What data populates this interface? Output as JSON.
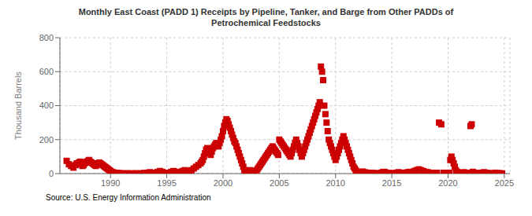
{
  "chart_data": {
    "type": "scatter",
    "title": "Monthly East Coast (PADD 1) Receipts by Pipeline, Tanker, and Barge from Other PADDs of\nPetrochemical Feedstocks",
    "ylabel": "Thousand Barrels",
    "source": "Source: U.S. Energy Information Administration",
    "color": "#cc0000",
    "marker": "square",
    "grid": true,
    "xlim": [
      1985.5,
      2025.5
    ],
    "ylim": [
      0,
      800
    ],
    "xticks": [
      1990,
      1995,
      2000,
      2005,
      2010,
      2015,
      2020,
      2025
    ],
    "yticks": [
      0,
      200,
      400,
      600,
      800
    ],
    "x": [
      1986.1,
      1986.3,
      1986.5,
      1986.7,
      1986.9,
      1987.0,
      1987.2,
      1987.3,
      1987.4,
      1987.5,
      1987.6,
      1987.7,
      1987.8,
      1987.9,
      1988.0,
      1988.1,
      1988.2,
      1988.3,
      1988.4,
      1988.5,
      1988.6,
      1988.7,
      1988.8,
      1988.9,
      1989.0,
      1989.1,
      1989.2,
      1989.3,
      1989.4,
      1989.5,
      1989.6,
      1989.7,
      1989.8,
      1989.9,
      1990.0,
      1990.1,
      1990.2,
      1990.3,
      1990.4,
      1990.5,
      1990.6,
      1990.7,
      1990.8,
      1990.9,
      1991.0,
      1991.2,
      1991.5,
      1991.8,
      1992.0,
      1992.3,
      1992.6,
      1992.9,
      1993.0,
      1993.2,
      1993.5,
      1993.7,
      1993.9,
      1994.0,
      1994.2,
      1994.4,
      1994.6,
      1994.8,
      1995.0,
      1995.2,
      1995.4,
      1995.6,
      1995.8,
      1996.0,
      1996.2,
      1996.4,
      1996.6,
      1996.8,
      1997.0,
      1997.2,
      1997.4,
      1997.6,
      1997.8,
      1998.0,
      1998.1,
      1998.2,
      1998.3,
      1998.4,
      1998.5,
      1998.6,
      1998.7,
      1998.8,
      1998.9,
      1999.0,
      1999.1,
      1999.2,
      1999.3,
      1999.4,
      1999.5,
      1999.6,
      1999.7,
      1999.8,
      1999.9,
      2000.0,
      2000.1,
      2000.2,
      2000.3,
      2000.4,
      2000.5,
      2000.6,
      2000.7,
      2000.8,
      2000.9,
      2001.0,
      2001.1,
      2001.2,
      2001.3,
      2001.4,
      2001.5,
      2001.6,
      2001.7,
      2001.8,
      2001.9,
      2002.0,
      2002.2,
      2002.4,
      2002.6,
      2002.8,
      2003.0,
      2003.1,
      2003.2,
      2003.3,
      2003.4,
      2003.5,
      2003.6,
      2003.7,
      2003.8,
      2003.9,
      2004.0,
      2004.1,
      2004.2,
      2004.3,
      2004.4,
      2004.5,
      2004.6,
      2004.7,
      2004.8,
      2004.9,
      2005.0,
      2005.1,
      2005.2,
      2005.3,
      2005.4,
      2005.5,
      2005.6,
      2005.7,
      2005.8,
      2005.9,
      2006.0,
      2006.1,
      2006.2,
      2006.3,
      2006.4,
      2006.5,
      2006.6,
      2006.7,
      2006.8,
      2006.9,
      2007.0,
      2007.1,
      2007.2,
      2007.3,
      2007.4,
      2007.5,
      2007.6,
      2007.7,
      2007.8,
      2007.9,
      2008.0,
      2008.1,
      2008.2,
      2008.3,
      2008.4,
      2008.5,
      2008.6,
      2008.7,
      2008.8,
      2008.9,
      2009.0,
      2009.1,
      2009.2,
      2009.3,
      2009.4,
      2009.5,
      2009.6,
      2009.7,
      2009.8,
      2009.9,
      2010.0,
      2010.1,
      2010.2,
      2010.3,
      2010.4,
      2010.5,
      2010.6,
      2010.7,
      2010.8,
      2010.9,
      2011.0,
      2011.1,
      2011.2,
      2011.3,
      2011.4,
      2011.5,
      2011.6,
      2011.7,
      2011.8,
      2011.9,
      2012.0,
      2012.2,
      2012.4,
      2012.6,
      2012.8,
      2013.0,
      2013.2,
      2013.4,
      2013.6,
      2013.8,
      2014.0,
      2014.1,
      2014.2,
      2014.3,
      2014.4,
      2014.5,
      2014.6,
      2014.7,
      2014.8,
      2014.9,
      2015.0,
      2015.2,
      2015.4,
      2015.6,
      2015.8,
      2016.0,
      2016.2,
      2016.4,
      2016.6,
      2016.8,
      2017.0,
      2017.2,
      2017.4,
      2017.6,
      2017.8,
      2018.0,
      2018.2,
      2018.4,
      2018.6,
      2018.8,
      2019.0,
      2019.2,
      2019.4,
      2019.6,
      2019.8,
      2020.0,
      2020.1,
      2020.2,
      2020.3,
      2020.4,
      2020.5,
      2020.6,
      2020.7,
      2020.8,
      2020.9,
      2021.0,
      2021.2,
      2021.4,
      2021.6,
      2021.8,
      2022.0,
      2022.1,
      2022.2,
      2022.4,
      2022.6,
      2022.8,
      2023.0,
      2023.2,
      2023.4,
      2023.6,
      2024.0,
      2024.2,
      2024.4,
      2024.6,
      2024.8
    ],
    "values": [
      75,
      55,
      45,
      35,
      50,
      60,
      65,
      70,
      55,
      45,
      50,
      60,
      65,
      70,
      75,
      80,
      70,
      65,
      60,
      55,
      50,
      45,
      55,
      60,
      65,
      60,
      55,
      50,
      45,
      40,
      35,
      30,
      25,
      20,
      15,
      10,
      8,
      5,
      3,
      5,
      3,
      2,
      2,
      1,
      1,
      1,
      2,
      1,
      1,
      2,
      1,
      2,
      3,
      5,
      8,
      5,
      3,
      5,
      10,
      15,
      10,
      5,
      2,
      5,
      10,
      15,
      10,
      5,
      10,
      15,
      20,
      15,
      10,
      20,
      30,
      40,
      50,
      60,
      70,
      80,
      100,
      120,
      140,
      150,
      130,
      120,
      110,
      130,
      150,
      160,
      170,
      180,
      170,
      160,
      180,
      200,
      220,
      250,
      280,
      300,
      320,
      310,
      290,
      270,
      250,
      230,
      210,
      190,
      180,
      160,
      140,
      120,
      100,
      80,
      60,
      40,
      20,
      10,
      15,
      20,
      15,
      10,
      20,
      30,
      40,
      50,
      60,
      70,
      80,
      90,
      100,
      110,
      120,
      130,
      140,
      150,
      160,
      150,
      140,
      130,
      120,
      110,
      200,
      190,
      180,
      170,
      160,
      150,
      140,
      130,
      120,
      110,
      100,
      120,
      140,
      160,
      180,
      200,
      180,
      160,
      140,
      120,
      100,
      120,
      140,
      160,
      180,
      200,
      220,
      240,
      260,
      280,
      300,
      320,
      340,
      360,
      380,
      400,
      420,
      630,
      600,
      550,
      400,
      350,
      300,
      250,
      200,
      180,
      160,
      140,
      120,
      100,
      80,
      100,
      120,
      140,
      160,
      180,
      200,
      220,
      200,
      180,
      160,
      140,
      120,
      100,
      80,
      60,
      40,
      30,
      20,
      10,
      5,
      8,
      12,
      8,
      5,
      3,
      5,
      3,
      2,
      1,
      2,
      5,
      8,
      10,
      8,
      5,
      3,
      2,
      1,
      2,
      1,
      2,
      5,
      8,
      5,
      3,
      5,
      8,
      10,
      8,
      15,
      20,
      25,
      20,
      15,
      10,
      8,
      5,
      3,
      2,
      5,
      300,
      290,
      5,
      3,
      2,
      5,
      80,
      100,
      80,
      60,
      40,
      20,
      10,
      5,
      3,
      5,
      8,
      5,
      3,
      280,
      290,
      10,
      5,
      3,
      2,
      5,
      8,
      5,
      3,
      2,
      5,
      3,
      2,
      1
    ]
  }
}
